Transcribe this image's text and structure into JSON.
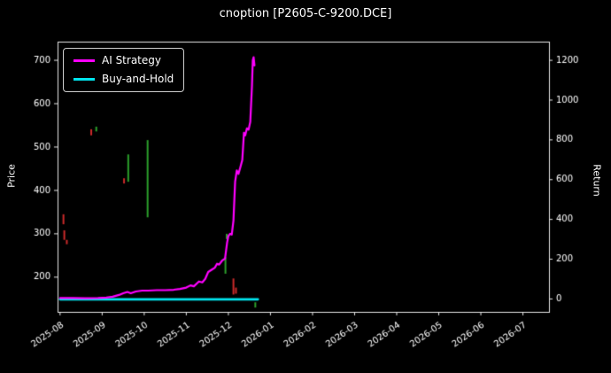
{
  "chart_data": {
    "type": "line",
    "title": "cnoption [P2605-C-9200.DCE]",
    "ylabel_left": "Price",
    "ylabel_right": "Return",
    "x_unit": "months since 2025-08",
    "x_tick_labels": [
      "2025-08",
      "2025-09",
      "2025-10",
      "2025-11",
      "2025-12",
      "2026-01",
      "2026-02",
      "2026-03",
      "2026-04",
      "2026-05",
      "2026-06",
      "2026-07"
    ],
    "x_tick_positions": [
      0,
      1,
      2,
      3,
      4,
      5,
      6,
      7,
      8,
      9,
      10,
      11
    ],
    "xlim_months": [
      -0.06,
      11.62
    ],
    "price_axis": {
      "ticks": [
        200,
        300,
        400,
        500,
        600,
        700
      ],
      "lim": [
        120,
        743
      ]
    },
    "return_axis": {
      "ticks": [
        0,
        200,
        400,
        600,
        800,
        1000,
        1200
      ],
      "lim": [
        -65,
        1294
      ]
    },
    "legend": [
      {
        "label": "AI Strategy",
        "color": "#ff00ff"
      },
      {
        "label": "Buy-and-Hold",
        "color": "#00e5ee"
      }
    ],
    "series": [
      {
        "name": "AI Strategy",
        "color": "#ff00ff",
        "width": 2.2,
        "axis": "price",
        "points": [
          [
            0.0,
            152
          ],
          [
            0.3,
            152
          ],
          [
            0.6,
            151.5
          ],
          [
            0.9,
            152
          ],
          [
            1.1,
            153
          ],
          [
            1.25,
            155
          ],
          [
            1.4,
            159
          ],
          [
            1.5,
            163
          ],
          [
            1.6,
            166
          ],
          [
            1.68,
            163
          ],
          [
            1.8,
            167
          ],
          [
            1.95,
            169
          ],
          [
            2.1,
            169
          ],
          [
            2.3,
            170
          ],
          [
            2.5,
            170
          ],
          [
            2.7,
            171
          ],
          [
            2.85,
            173
          ],
          [
            3.0,
            176
          ],
          [
            3.1,
            181
          ],
          [
            3.18,
            179
          ],
          [
            3.3,
            190
          ],
          [
            3.38,
            188
          ],
          [
            3.45,
            196
          ],
          [
            3.52,
            212
          ],
          [
            3.6,
            217
          ],
          [
            3.68,
            222
          ],
          [
            3.73,
            231
          ],
          [
            3.78,
            229
          ],
          [
            3.85,
            238
          ],
          [
            3.92,
            243
          ],
          [
            3.97,
            280
          ],
          [
            4.0,
            295
          ],
          [
            4.04,
            300
          ],
          [
            4.08,
            298
          ],
          [
            4.12,
            330
          ],
          [
            4.16,
            420
          ],
          [
            4.2,
            446
          ],
          [
            4.24,
            438
          ],
          [
            4.28,
            452
          ],
          [
            4.33,
            470
          ],
          [
            4.37,
            533
          ],
          [
            4.4,
            527
          ],
          [
            4.44,
            543
          ],
          [
            4.48,
            540
          ],
          [
            4.52,
            558
          ],
          [
            4.56,
            640
          ],
          [
            4.58,
            700
          ],
          [
            4.6,
            707
          ],
          [
            4.62,
            688
          ]
        ]
      },
      {
        "name": "Buy-and-Hold",
        "color": "#00e5ee",
        "width": 2.8,
        "axis": "price",
        "points": [
          [
            0.0,
            149
          ],
          [
            1.0,
            149
          ],
          [
            2.0,
            149
          ],
          [
            3.0,
            149
          ],
          [
            4.0,
            149
          ],
          [
            4.7,
            149
          ]
        ]
      }
    ],
    "candle_marks": {
      "colors": {
        "up": "#2ca02c",
        "down": "#cc2a2a"
      },
      "bars": [
        {
          "t": 0.08,
          "low": 322,
          "high": 345,
          "dir": "down"
        },
        {
          "t": 0.1,
          "low": 286,
          "high": 308,
          "dir": "down"
        },
        {
          "t": 0.16,
          "low": 276,
          "high": 286,
          "dir": "down"
        },
        {
          "t": 0.74,
          "low": 527,
          "high": 541,
          "dir": "down"
        },
        {
          "t": 0.86,
          "low": 536,
          "high": 547,
          "dir": "up"
        },
        {
          "t": 1.52,
          "low": 416,
          "high": 428,
          "dir": "down"
        },
        {
          "t": 1.62,
          "low": 420,
          "high": 483,
          "dir": "up"
        },
        {
          "t": 2.08,
          "low": 338,
          "high": 516,
          "dir": "up"
        },
        {
          "t": 3.93,
          "low": 208,
          "high": 246,
          "dir": "up"
        },
        {
          "t": 3.96,
          "low": 288,
          "high": 300,
          "dir": "up"
        },
        {
          "t": 4.12,
          "low": 160,
          "high": 197,
          "dir": "down"
        },
        {
          "t": 4.18,
          "low": 162,
          "high": 176,
          "dir": "down"
        },
        {
          "t": 4.64,
          "low": 130,
          "high": 142,
          "dir": "up"
        }
      ]
    },
    "background": "#000000",
    "frame_color": "#e8e8e8",
    "text_color": "#ffffff",
    "grid": false,
    "legend_position": "upper-left"
  }
}
